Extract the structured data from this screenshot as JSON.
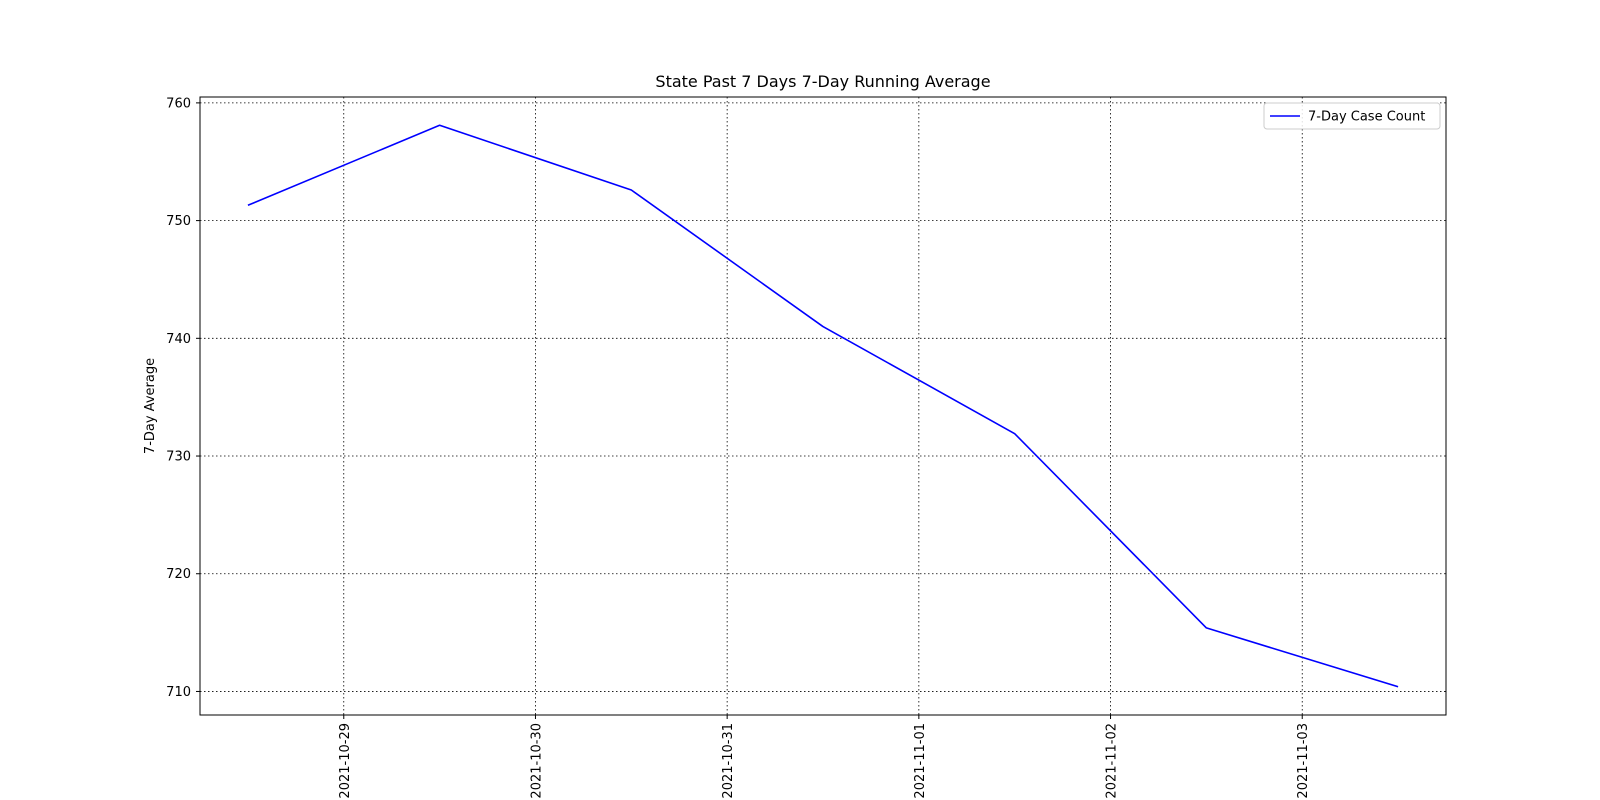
{
  "chart_data": {
    "type": "line",
    "title": "State Past 7 Days 7-Day Running Average",
    "xlabel": "",
    "ylabel": "7-Day Average",
    "x_type": "date",
    "x": [
      "2021-10-28 12:00",
      "2021-10-29 12:00",
      "2021-10-30 12:00",
      "2021-10-31 12:00",
      "2021-11-01 12:00",
      "2021-11-02 12:00",
      "2021-11-03 12:00"
    ],
    "xlim": [
      "2021-10-28 06:00",
      "2021-11-03 18:00"
    ],
    "x_ticks": [
      "2021-10-29",
      "2021-10-30",
      "2021-10-31",
      "2021-11-01",
      "2021-11-02",
      "2021-11-03"
    ],
    "ylim": [
      708,
      760.5
    ],
    "y_ticks": [
      710,
      720,
      730,
      740,
      750,
      760
    ],
    "grid": true,
    "legend_position": "upper right",
    "series": [
      {
        "name": "7-Day Case Count",
        "color": "#0000ff",
        "values": [
          751.3,
          758.1,
          752.6,
          741.0,
          731.9,
          715.4,
          710.4
        ]
      }
    ]
  }
}
